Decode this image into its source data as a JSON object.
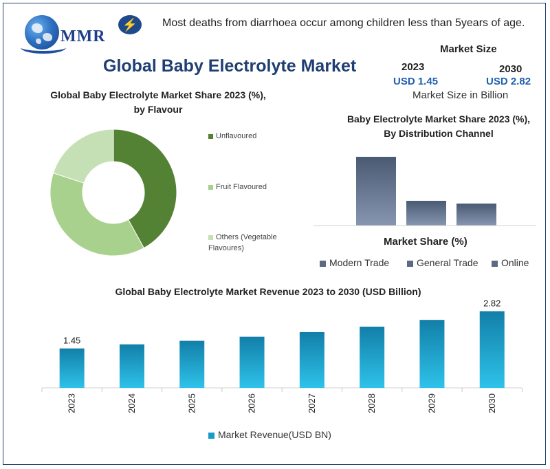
{
  "header": {
    "logo_text": "MMR",
    "fact": "Most deaths from diarrhoea occur among children less than 5years of age.",
    "main_title": "Global Baby Electrolyte Market",
    "icon": "lightning-bolt-icon"
  },
  "market_size": {
    "title": "Market Size",
    "year_start": "2023",
    "year_end": "2030",
    "value_start": "USD 1.45",
    "value_end": "USD 2.82",
    "unit_note": "Market Size in Billion"
  },
  "chart_data": [
    {
      "type": "pie",
      "title": "Global Baby Electrolyte Market Share 2023 (%), by Flavour",
      "categories": [
        "Unflavoured",
        "Fruit Flavoured",
        "Others (Vegetable Flavoures)"
      ],
      "values": [
        42,
        38,
        20
      ],
      "colors": [
        "#548235",
        "#a9d18e",
        "#c5e0b4"
      ],
      "donut": true
    },
    {
      "type": "bar",
      "title": "Baby Electrolyte Market Share 2023 (%), By Distribution Channel",
      "xlabel": "Market Share (%)",
      "categories": [
        "Modern Trade",
        "General Trade",
        "Online"
      ],
      "values": [
        100,
        36,
        32
      ],
      "colors": [
        "#44546a",
        "#44546a",
        "#44546a"
      ]
    },
    {
      "type": "bar",
      "title": "Global Baby Electrolyte Market Revenue 2023 to 2030 (USD Billion)",
      "categories": [
        "2023",
        "2024",
        "2025",
        "2026",
        "2027",
        "2028",
        "2029",
        "2030"
      ],
      "series": [
        {
          "name": "Market Revenue(USD BN)",
          "values": [
            1.45,
            1.6,
            1.73,
            1.88,
            2.05,
            2.25,
            2.5,
            2.82
          ]
        }
      ],
      "data_labels": {
        "2023": "1.45",
        "2030": "2.82"
      },
      "ylim": [
        0,
        3
      ],
      "color": "#1a9bc7"
    }
  ]
}
